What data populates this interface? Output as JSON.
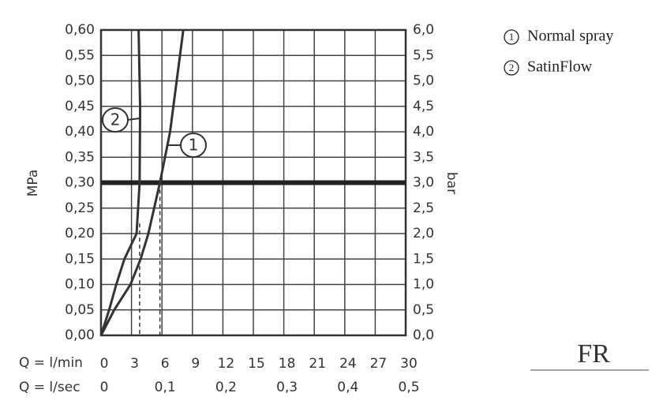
{
  "chart_data": {
    "type": "line",
    "ylabel": "MPa",
    "y2label": "bar",
    "xlabel": "Q = l/min",
    "x2label": "Q = l/sec",
    "xlim": [
      0,
      30
    ],
    "xticks": [
      0,
      3,
      6,
      9,
      12,
      15,
      18,
      21,
      24,
      27,
      30
    ],
    "x2lim": [
      0,
      0.5
    ],
    "x2ticks": [
      0,
      {
        "value": 0.1,
        "label": "0,1"
      },
      {
        "value": 0.2,
        "label": "0,2"
      },
      {
        "value": 0.3,
        "label": "0,3"
      },
      {
        "value": 0.4,
        "label": "0,4"
      },
      {
        "value": 0.5,
        "label": "0,5"
      }
    ],
    "ylim": [
      0,
      0.6
    ],
    "yticks": [
      {
        "value": 0,
        "label": "0,00"
      },
      {
        "value": 0.05,
        "label": "0,05"
      },
      {
        "value": 0.1,
        "label": "0,10"
      },
      {
        "value": 0.15,
        "label": "0,15"
      },
      {
        "value": 0.2,
        "label": "0,20"
      },
      {
        "value": 0.25,
        "label": "0,25"
      },
      {
        "value": 0.3,
        "label": "0,30"
      },
      {
        "value": 0.35,
        "label": "0,35"
      },
      {
        "value": 0.4,
        "label": "0,40"
      },
      {
        "value": 0.45,
        "label": "0,45"
      },
      {
        "value": 0.5,
        "label": "0,50"
      },
      {
        "value": 0.55,
        "label": "0,55"
      },
      {
        "value": 0.6,
        "label": "0,60"
      }
    ],
    "y2lim": [
      0,
      6
    ],
    "y2ticks": [
      {
        "value": 0,
        "label": "0,0"
      },
      {
        "value": 0.5,
        "label": "0,5"
      },
      {
        "value": 1,
        "label": "1,0"
      },
      {
        "value": 1.5,
        "label": "1,5"
      },
      {
        "value": 2,
        "label": "2,0"
      },
      {
        "value": 2.5,
        "label": "2,5"
      },
      {
        "value": 3,
        "label": "3,0"
      },
      {
        "value": 3.5,
        "label": "3,5"
      },
      {
        "value": 4,
        "label": "4,0"
      },
      {
        "value": 4.5,
        "label": "4,5"
      },
      {
        "value": 5,
        "label": "5,0"
      },
      {
        "value": 5.5,
        "label": "5,5"
      },
      {
        "value": 6,
        "label": "6,0"
      }
    ],
    "grid": true,
    "highlight_y": 0.3,
    "drop_lines": [
      {
        "x": 3.8,
        "y": 0.22
      },
      {
        "x": 5.8,
        "y": 0.3
      }
    ],
    "series": [
      {
        "name": "Normal spray",
        "label": "1",
        "color": "#333333",
        "x": [
          0,
          1.3,
          2.9,
          3.9,
          4.66,
          5.8,
          6.8,
          8.1
        ],
        "values": [
          0,
          0.05,
          0.1,
          0.15,
          0.2,
          0.3,
          0.4,
          0.6
        ]
      },
      {
        "name": "SatinFlow",
        "label": "2",
        "color": "#333333",
        "x": [
          0,
          0.8,
          1.5,
          2.3,
          3.5,
          3.8,
          3.85,
          3.7
        ],
        "values": [
          0,
          0.05,
          0.1,
          0.15,
          0.2,
          0.3,
          0.45,
          0.6
        ]
      }
    ],
    "logo": "FR"
  }
}
